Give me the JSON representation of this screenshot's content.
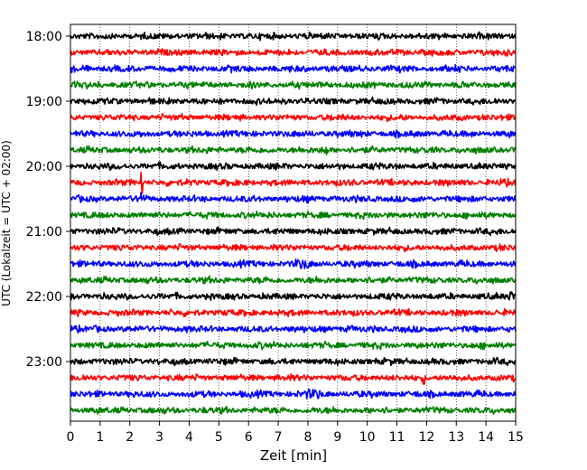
{
  "chart_data": {
    "type": "line",
    "xlabel": "Zeit  [min]",
    "ylabel": "UTC (Lokalzeit = UTC + 02:00)",
    "xlim": [
      0,
      15
    ],
    "x_ticks": [
      "0",
      "1",
      "2",
      "3",
      "4",
      "5",
      "6",
      "7",
      "8",
      "9",
      "10",
      "11",
      "12",
      "13",
      "14",
      "15"
    ],
    "y_ticks": [
      "18:00",
      "19:00",
      "20:00",
      "21:00",
      "22:00",
      "23:00"
    ],
    "grid": "x-only dotted",
    "trace_interval_minutes": 15,
    "trace_start_times": [
      "18:00",
      "18:15",
      "18:30",
      "18:45",
      "19:00",
      "19:15",
      "19:30",
      "19:45",
      "20:00",
      "20:15",
      "20:30",
      "20:45",
      "21:00",
      "21:15",
      "21:30",
      "21:45",
      "22:00",
      "22:15",
      "22:30",
      "22:45",
      "23:00",
      "23:15",
      "23:30",
      "23:45"
    ],
    "trace_color_cycle": [
      "#000000",
      "#ff0000",
      "#0000ff",
      "#008000"
    ],
    "notable_events": [
      {
        "trace": "20:15",
        "x": 2.4,
        "description": "large spike"
      },
      {
        "trace": "20:30",
        "x": 2.4,
        "description": "large spike"
      },
      {
        "trace": "19:45",
        "x": 8.6,
        "description": "spike"
      },
      {
        "trace": "23:15",
        "x": 11.9,
        "description": "spike"
      },
      {
        "trace": "23:30",
        "x": 8.2,
        "description": "burst"
      },
      {
        "trace": "21:30",
        "x": 7.8,
        "description": "burst"
      },
      {
        "trace": "22:00",
        "x": 15.0,
        "description": "burst"
      }
    ]
  }
}
